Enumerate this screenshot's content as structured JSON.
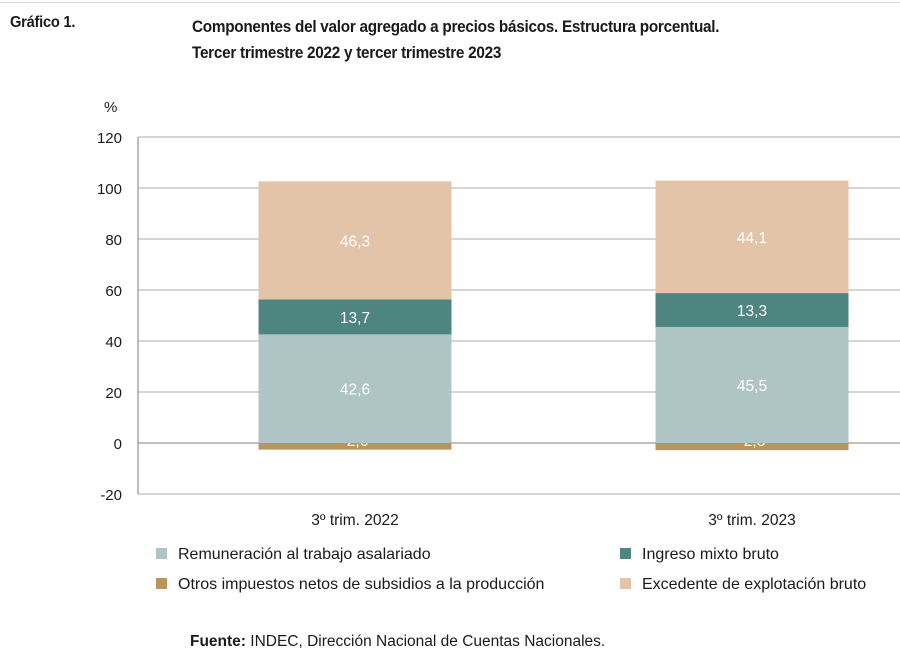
{
  "header": {
    "figure_label": "Gráfico 1.",
    "title_line1": "Componentes del valor agregado a precios básicos. Estructura porcentual.",
    "title_line2": "Tercer trimestre 2022 y tercer trimestre 2023"
  },
  "footer": {
    "source_label": "Fuente:",
    "source_text": " INDEC, Dirección Nacional de Cuentas Nacionales."
  },
  "chart_data": {
    "type": "bar",
    "stacked": true,
    "unit_label": "%",
    "categories": [
      "3º trim. 2022",
      "3º trim. 2023"
    ],
    "ylim": [
      -20,
      120
    ],
    "yticks": [
      -20,
      0,
      20,
      40,
      60,
      80,
      100,
      120
    ],
    "grid": true,
    "legend_position": "bottom",
    "series": [
      {
        "name": "Otros impuestos netos de subsidios a la producción",
        "values": [
          -2.6,
          -2.8
        ],
        "labels": [
          "-2,6",
          "-2,8"
        ],
        "color": "#b8955a"
      },
      {
        "name": "Remuneración al trabajo asalariado",
        "values": [
          42.6,
          45.5
        ],
        "labels": [
          "42,6",
          "45,5"
        ],
        "color": "#afc5c5"
      },
      {
        "name": "Ingreso mixto bruto",
        "values": [
          13.7,
          13.3
        ],
        "labels": [
          "13,7",
          "13,3"
        ],
        "color": "#4e8580"
      },
      {
        "name": "Excedente de explotación bruto",
        "values": [
          46.3,
          44.1
        ],
        "labels": [
          "46,3",
          "44,1"
        ],
        "color": "#e3c4a8"
      }
    ],
    "legend_order": [
      "Remuneración al trabajo asalariado",
      "Ingreso mixto bruto",
      "Otros impuestos netos de subsidios a la producción",
      "Excedente de explotación bruto"
    ]
  }
}
